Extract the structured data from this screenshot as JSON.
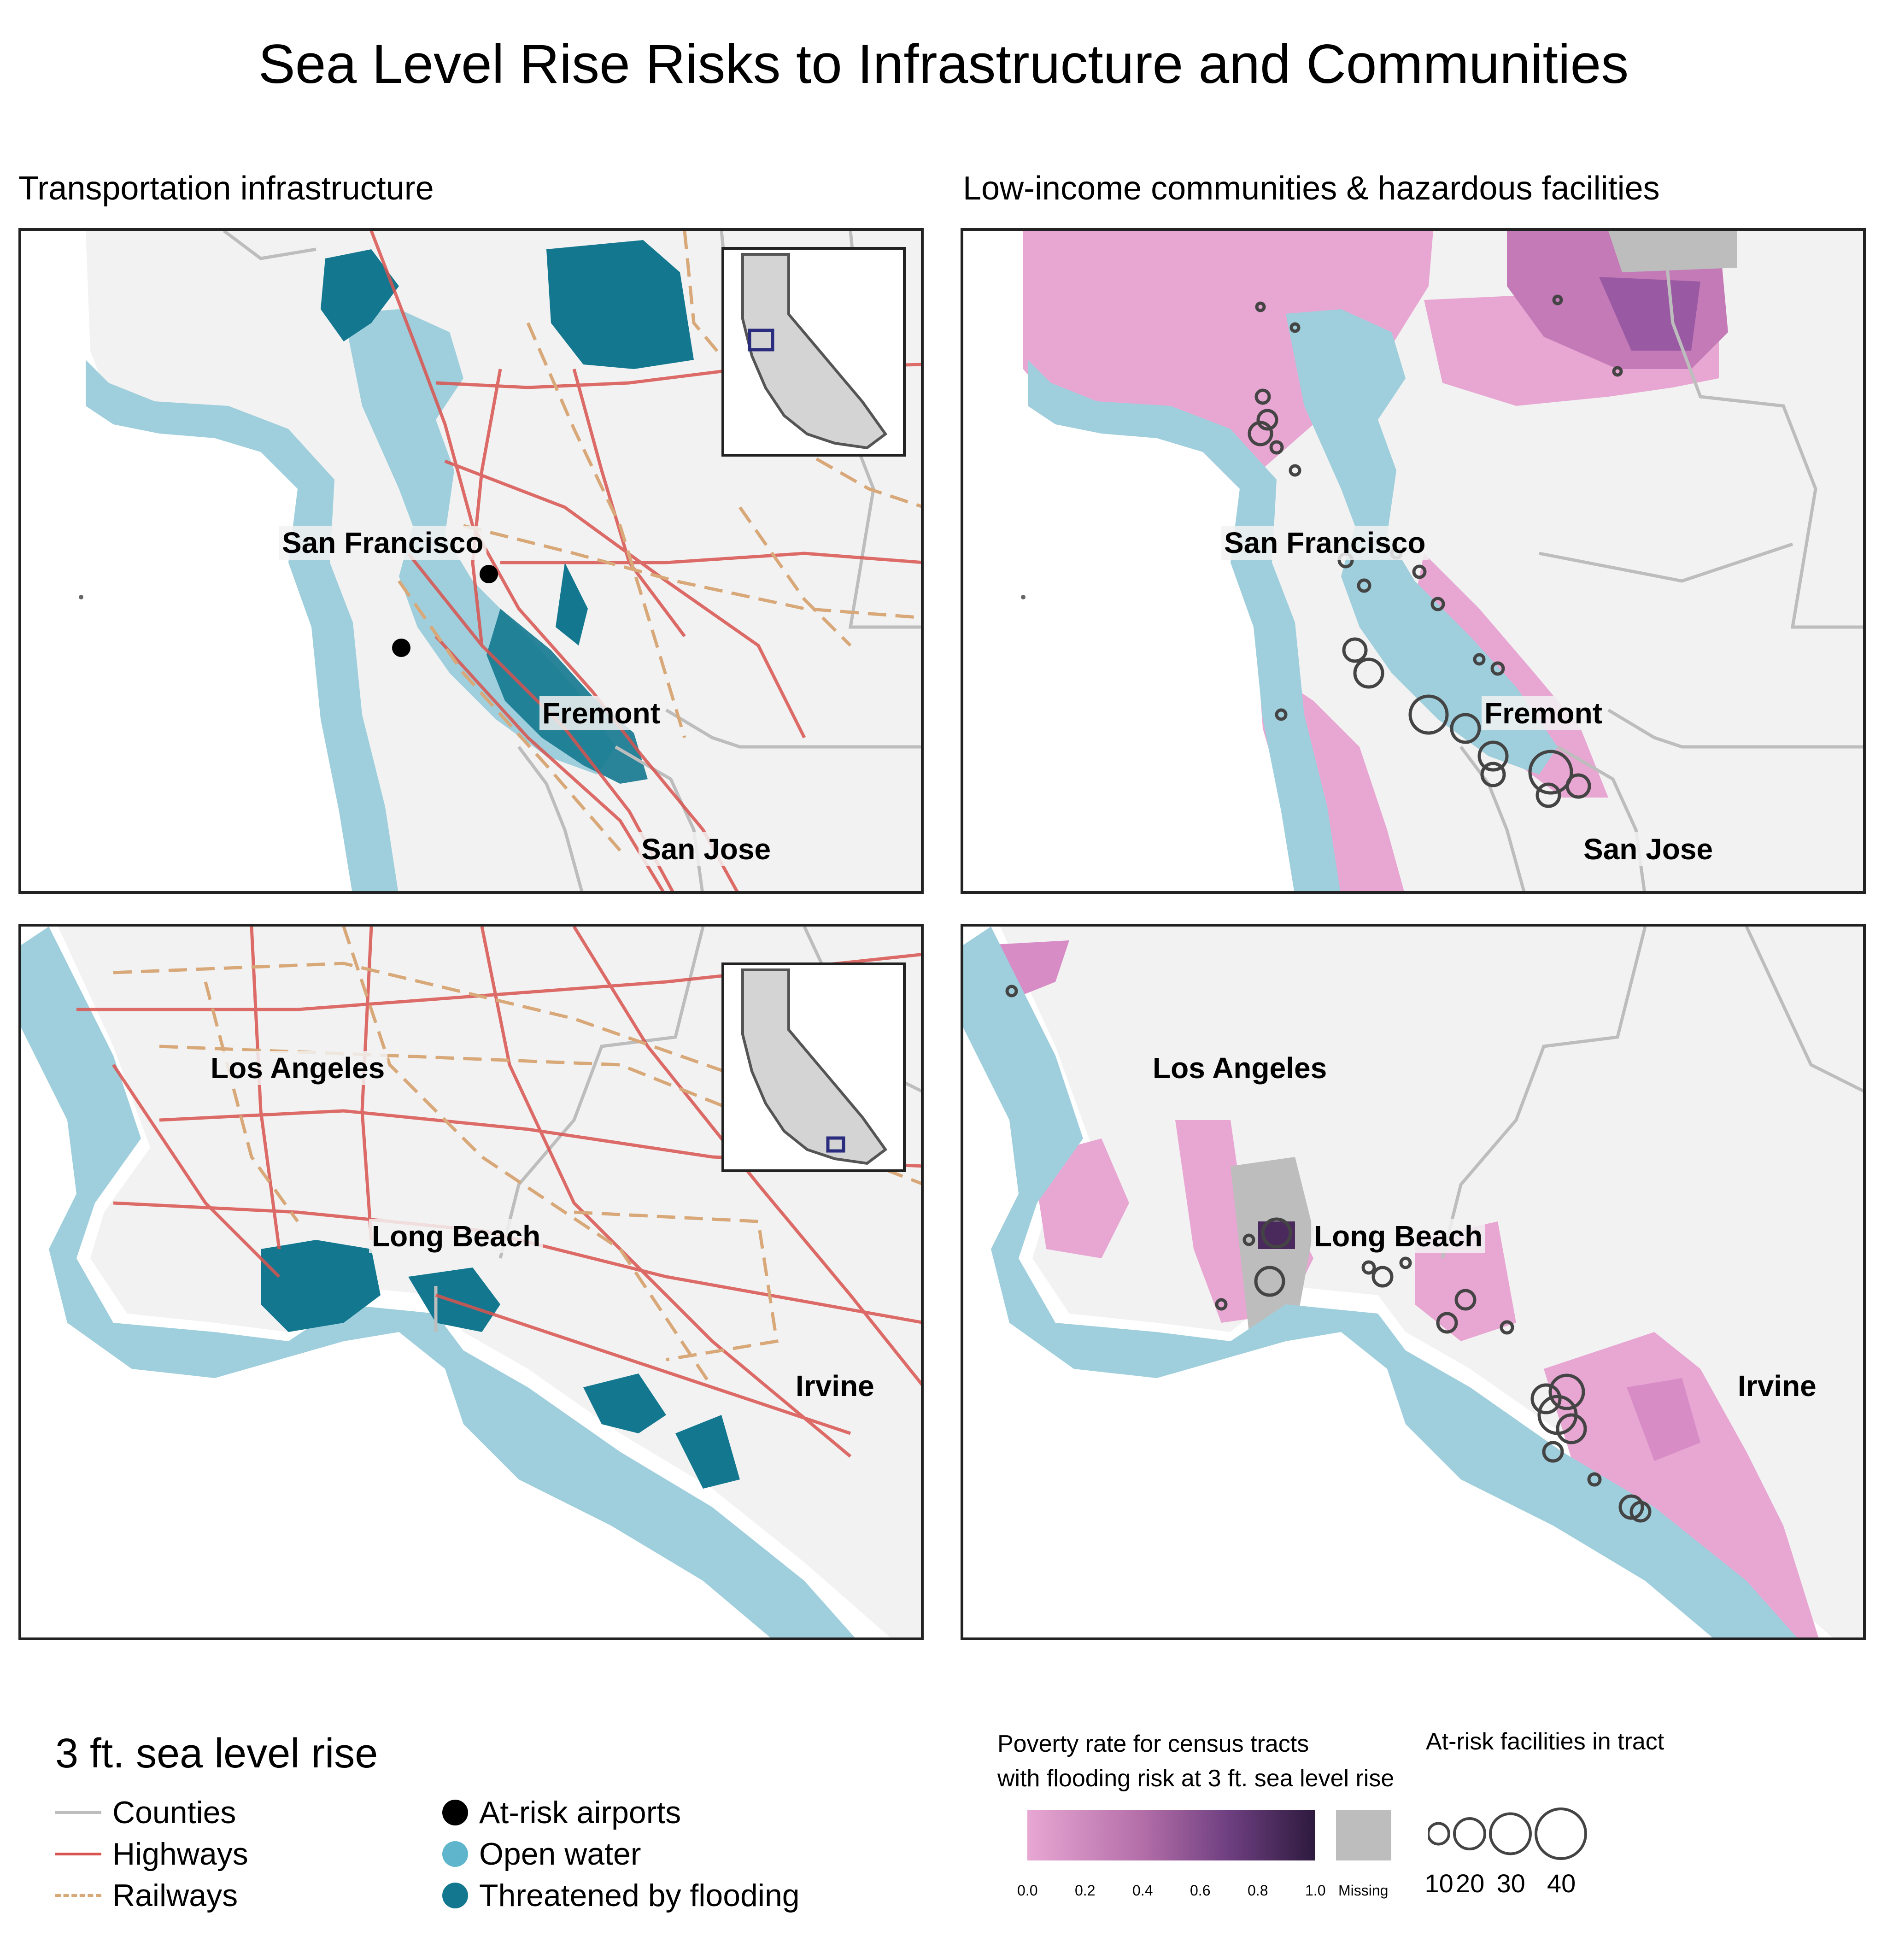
{
  "figure": {
    "title": "Sea Level Rise Risks to Infrastructure and Communities",
    "panel_titles": {
      "left": "Transportation infrastructure",
      "right": "Low-income communities & hazardous facilities"
    }
  },
  "cities": {
    "bay": [
      "San Francisco",
      "Fremont",
      "San Jose"
    ],
    "socal": [
      "Los Angeles",
      "Long Beach",
      "Irvine"
    ]
  },
  "colors": {
    "counties": "#bdbdbd",
    "highways": "#d9534f",
    "railways": "#d8a878",
    "airport": "#000000",
    "open_water": "#9fcfdc",
    "flooding": "#13788f",
    "land": "#f2f2f2",
    "poverty_low": "#e8a7d3",
    "poverty_high": "#2d1a3e",
    "missing": "#bdbdbd",
    "facility_stroke": "#444444"
  },
  "legend": {
    "heading": "3 ft. sea level rise",
    "items": [
      {
        "label": "Counties",
        "key": "counties"
      },
      {
        "label": "Highways",
        "key": "highways"
      },
      {
        "label": "Railways",
        "key": "railways"
      },
      {
        "label": "At-risk airports",
        "key": "airport"
      },
      {
        "label": "Open water",
        "key": "open_water"
      },
      {
        "label": "Threatened by flooding",
        "key": "flooding"
      }
    ],
    "poverty": {
      "title_line1": "Poverty rate for census tracts",
      "title_line2": "with flooding risk at 3 ft. sea level rise",
      "ticks": [
        "0.0",
        "0.2",
        "0.4",
        "0.6",
        "0.8",
        "1.0"
      ],
      "tick_values": [
        0.0,
        0.2,
        0.4,
        0.6,
        0.8,
        1.0
      ],
      "missing_label": "Missing"
    },
    "facilities": {
      "title": "At-risk facilities in tract",
      "labels": [
        "10",
        "20",
        "30",
        "40"
      ],
      "values": [
        10,
        20,
        30,
        40
      ]
    }
  }
}
